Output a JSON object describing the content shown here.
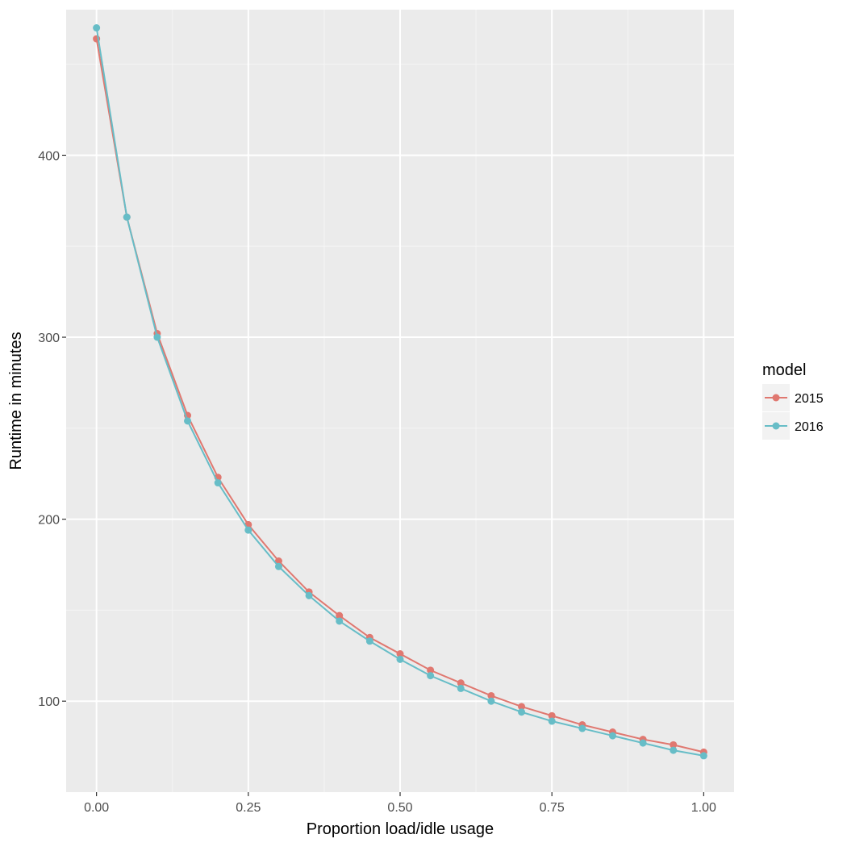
{
  "chart_data": {
    "type": "line",
    "title": "",
    "xlabel": "Proportion load/idle usage",
    "ylabel": "Runtime in minutes",
    "xlim": [
      -0.05,
      1.05
    ],
    "ylim": [
      50,
      480
    ],
    "x_ticks": [
      0,
      0.25,
      0.5,
      0.75,
      1
    ],
    "x_tick_labels": [
      "0.00",
      "0.25",
      "0.50",
      "0.75",
      "1.00"
    ],
    "y_ticks": [
      100,
      200,
      300,
      400
    ],
    "y_tick_labels": [
      "100",
      "200",
      "300",
      "400"
    ],
    "grid": true,
    "legend": {
      "title": "model",
      "position": "right"
    },
    "x": [
      0,
      0.05,
      0.1,
      0.15,
      0.2,
      0.25,
      0.3,
      0.35,
      0.4,
      0.45,
      0.5,
      0.55,
      0.6,
      0.65,
      0.7,
      0.75,
      0.8,
      0.85,
      0.9,
      0.95,
      1.0
    ],
    "series": [
      {
        "name": "2015",
        "color": "#e07870",
        "values": [
          464,
          366,
          302,
          257,
          223,
          197,
          177,
          160,
          147,
          135,
          126,
          117,
          110,
          103,
          97,
          92,
          87,
          83,
          79,
          76,
          72
        ]
      },
      {
        "name": "2016",
        "color": "#67bdc7",
        "values": [
          470,
          366,
          300,
          254,
          220,
          194,
          174,
          158,
          144,
          133,
          123,
          114,
          107,
          100,
          94,
          89,
          85,
          81,
          77,
          73,
          70
        ]
      }
    ]
  }
}
